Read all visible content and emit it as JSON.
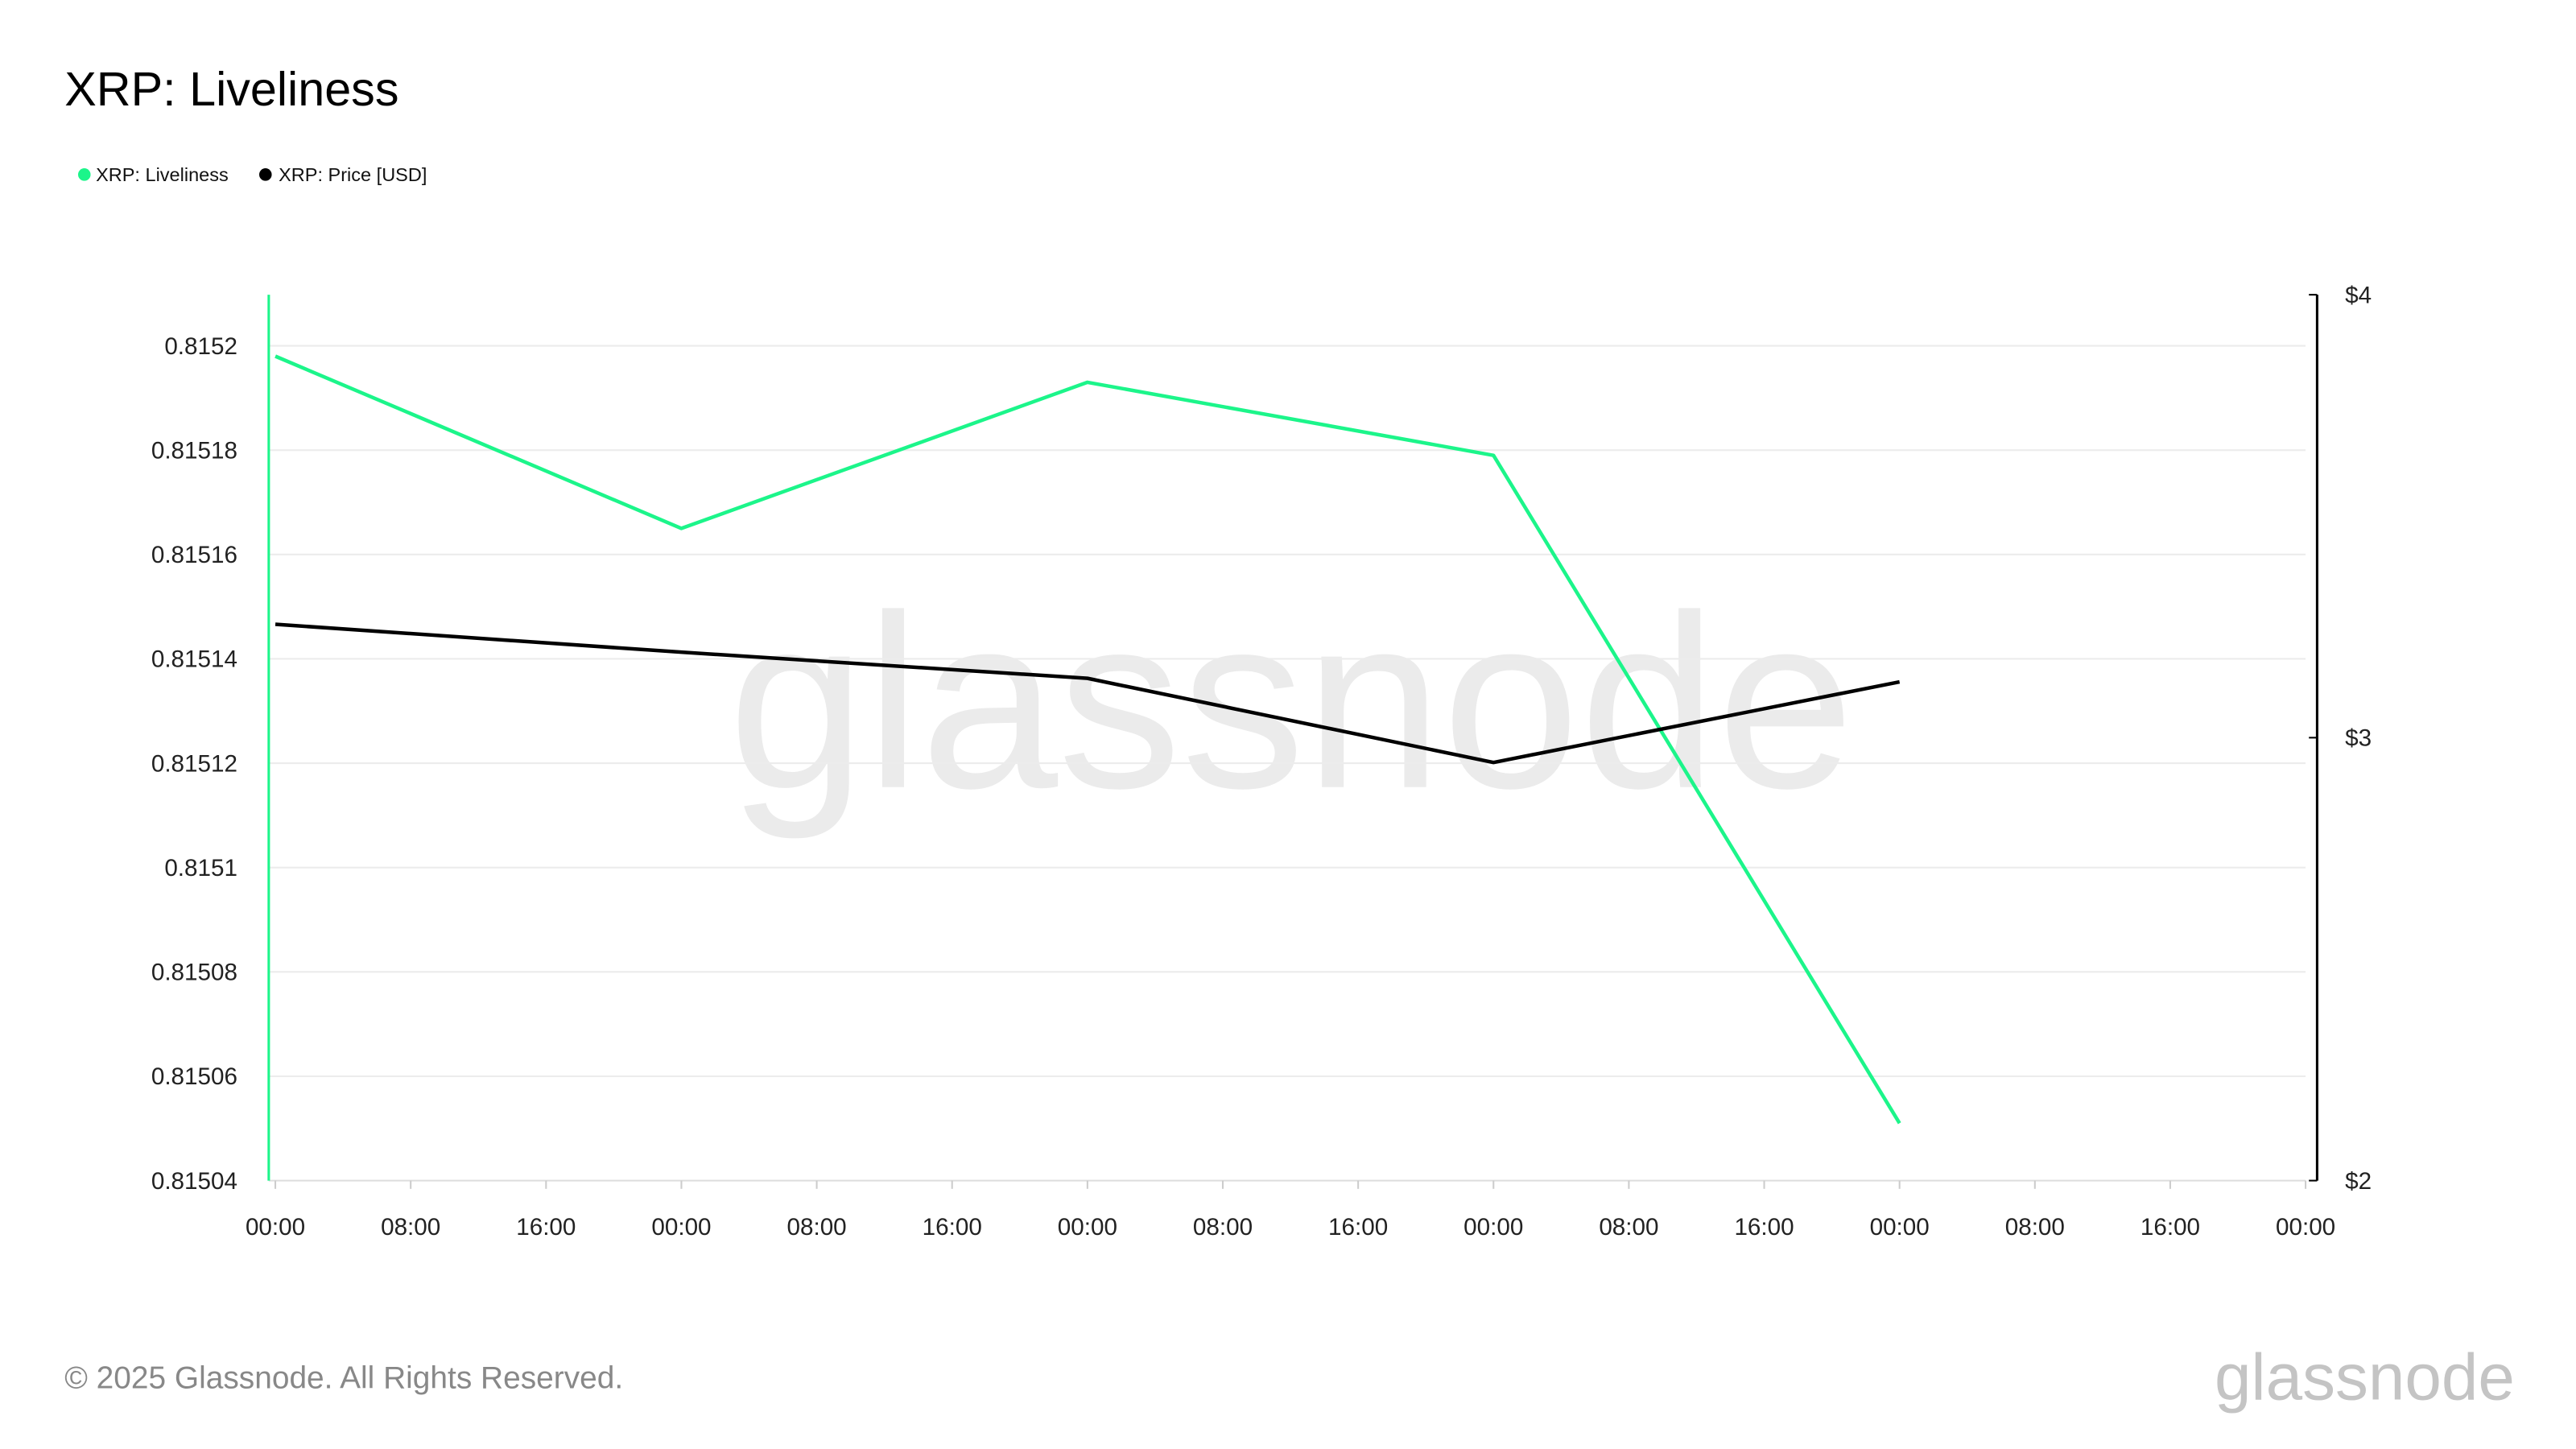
{
  "chart_data": {
    "type": "line",
    "title": "XRP: Liveliness",
    "legend_position": "top-left",
    "grid": true,
    "x_ticks": [
      "00:00",
      "08:00",
      "16:00",
      "00:00",
      "08:00",
      "16:00",
      "00:00",
      "08:00",
      "16:00",
      "00:00",
      "08:00",
      "16:00",
      "00:00",
      "08:00",
      "16:00",
      "00:00"
    ],
    "point_tick_indices": [
      0,
      3,
      6,
      9,
      12
    ],
    "y_left": {
      "ticks": [
        "0.8152",
        "0.81518",
        "0.81516",
        "0.81514",
        "0.81512",
        "0.8151",
        "0.81508",
        "0.81506",
        "0.81504"
      ],
      "range": [
        0.81504,
        0.81521
      ]
    },
    "y_right": {
      "ticks": [
        "$4",
        "$3",
        "$2"
      ],
      "range": [
        2,
        4
      ]
    },
    "series": [
      {
        "name": "XRP: Liveliness",
        "axis": "left",
        "color": "#1cf58a",
        "values": [
          0.815198,
          0.815165,
          0.815193,
          0.815179,
          0.815051
        ]
      },
      {
        "name": "XRP: Price [USD]",
        "axis": "right",
        "color": "#000000",
        "values": [
          3.256,
          3.193,
          3.134,
          2.944,
          3.126
        ]
      }
    ]
  },
  "watermark": "glassnode",
  "footer": {
    "copyright": "© 2025 Glassnode. All Rights Reserved.",
    "logo": "glassnode"
  }
}
